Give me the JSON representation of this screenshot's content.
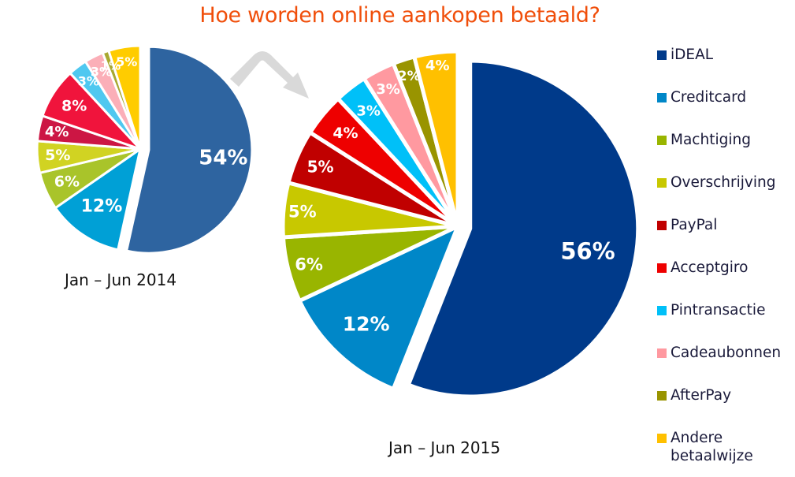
{
  "title": "Hoe worden online aankopen betaald?",
  "periods": {
    "p2014": "Jan – Jun 2014",
    "p2015": "Jan – Jun  2015"
  },
  "legend": [
    {
      "label": "iDEAL",
      "color": "#003A8A"
    },
    {
      "label": "Creditcard",
      "color": "#0087C8"
    },
    {
      "label": "Machtiging",
      "color": "#99B500"
    },
    {
      "label": "Overschrijving",
      "color": "#C8C800"
    },
    {
      "label": "PayPal",
      "color": "#C00000"
    },
    {
      "label": "Acceptgiro",
      "color": "#EE0000"
    },
    {
      "label": "Pintransactie",
      "color": "#00C0F8"
    },
    {
      "label": "Cadeaubonnen",
      "color": "#FF99A0"
    },
    {
      "label": "AfterPay",
      "color": "#999400"
    },
    {
      "label": "Andere\nbetaalwijze",
      "color": "#FFC000"
    }
  ],
  "chart_data": [
    {
      "type": "pie",
      "title": "Jan – Jun 2014",
      "categories": [
        "iDEAL",
        "Creditcard",
        "Machtiging",
        "Overschrijving",
        "PayPal",
        "Acceptgiro",
        "Pintransactie",
        "Cadeaubonnen",
        "AfterPay",
        "Andere betaalwijze"
      ],
      "values": [
        54,
        12,
        6,
        5,
        4,
        8,
        3,
        3,
        1,
        5
      ],
      "labels": [
        "54%",
        "12%",
        "6%",
        "5%",
        "4%",
        "8%",
        "3%",
        "3%",
        "1%",
        "5%"
      ],
      "colors": [
        "#2E64A0",
        "#00A0D6",
        "#A9C42A",
        "#D1D322",
        "#CC1644",
        "#F0143C",
        "#4FC8F0",
        "#FBAFB8",
        "#A8A830",
        "#FFCC00"
      ],
      "exploded": "iDEAL",
      "start_angle_deg": 0,
      "direction": "clockwise"
    },
    {
      "type": "pie",
      "title": "Jan – Jun  2015",
      "categories": [
        "iDEAL",
        "Creditcard",
        "Machtiging",
        "Overschrijving",
        "PayPal",
        "Acceptgiro",
        "Pintransactie",
        "Cadeaubonnen",
        "AfterPay",
        "Andere betaalwijze"
      ],
      "values": [
        56,
        12,
        6,
        5,
        5,
        4,
        3,
        3,
        2,
        4
      ],
      "labels": [
        "56%",
        "12%",
        "6%",
        "5%",
        "5%",
        "4%",
        "3%",
        "3%",
        "2%",
        "4%"
      ],
      "colors": [
        "#003A8A",
        "#0087C8",
        "#99B500",
        "#C8C800",
        "#C00000",
        "#EE0000",
        "#00C0F8",
        "#FF99A0",
        "#999400",
        "#FFC000"
      ],
      "exploded": "iDEAL",
      "start_angle_deg": 0,
      "direction": "clockwise"
    }
  ]
}
